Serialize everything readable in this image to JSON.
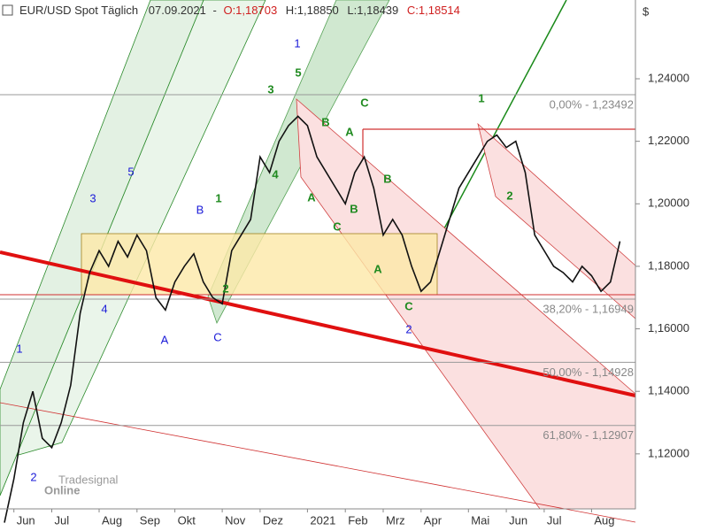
{
  "chart_data": {
    "type": "line",
    "header": {
      "symbol": "EUR/USD Spot Täglich",
      "date": "07.09.2021",
      "open": "O:1,18703",
      "high": "H:1,18850",
      "low": "L:1,18439",
      "close": "C:1,18514"
    },
    "y_label": "$",
    "categories": [
      "",
      "Jun",
      null,
      null,
      null,
      "Jul",
      null,
      null,
      null,
      null,
      "Aug",
      null,
      null,
      null,
      "Sep",
      null,
      null,
      null,
      "Okt",
      null,
      null,
      null,
      null,
      "Nov",
      null,
      null,
      null,
      "Dez",
      null,
      null,
      null,
      null,
      "2021",
      null,
      null,
      null,
      "Feb",
      null,
      null,
      null,
      "Mrz",
      null,
      null,
      null,
      "Apr",
      null,
      null,
      null,
      null,
      "Mai",
      null,
      null,
      null,
      "Jun",
      null,
      null,
      null,
      "Jul",
      null,
      null,
      null,
      null,
      "Aug",
      null,
      null,
      null
    ],
    "series": [
      {
        "name": "EUR/USD",
        "color": "#111111",
        "values": [
          1.098,
          1.112,
          1.13,
          1.14,
          1.125,
          1.122,
          1.13,
          1.142,
          1.165,
          1.178,
          1.185,
          1.18,
          1.188,
          1.183,
          1.19,
          1.185,
          1.17,
          1.166,
          1.175,
          1.18,
          1.184,
          1.175,
          1.17,
          1.168,
          1.185,
          1.19,
          1.195,
          1.215,
          1.21,
          1.22,
          1.225,
          1.228,
          1.225,
          1.215,
          1.21,
          1.205,
          1.2,
          1.21,
          1.215,
          1.205,
          1.19,
          1.195,
          1.19,
          1.18,
          1.172,
          1.175,
          1.185,
          1.195,
          1.205,
          1.21,
          1.215,
          1.22,
          1.222,
          1.218,
          1.22,
          1.21,
          1.19,
          1.185,
          1.18,
          1.178,
          1.175,
          1.18,
          1.177,
          1.172,
          1.175,
          1.188
        ]
      }
    ],
    "ylim": [
      1.1024,
      1.2652
    ],
    "yticks": [
      {
        "value": 1.12,
        "label": "1,12000"
      },
      {
        "value": 1.14,
        "label": "1,14000"
      },
      {
        "value": 1.16,
        "label": "1,16000"
      },
      {
        "value": 1.18,
        "label": "1,18000"
      },
      {
        "value": 1.2,
        "label": "1,20000"
      },
      {
        "value": 1.22,
        "label": "1,22000"
      },
      {
        "value": 1.24,
        "label": "1,24000"
      }
    ],
    "levels": [
      {
        "value": 1.23492,
        "label": "0,00% - 1,23492"
      },
      {
        "value": 1.16949,
        "label": "38,20% - 1,16949"
      },
      {
        "value": 1.14928,
        "label": "50,00% - 1,14928"
      },
      {
        "value": 1.12907,
        "label": "61,80% - 1,12907"
      }
    ],
    "wave_labels_major": {
      "color": "#1a1ad8",
      "texts": [
        "1",
        "2",
        "3",
        "4",
        "5",
        "A",
        "B",
        "C",
        "1",
        "2"
      ]
    },
    "wave_labels_minor": {
      "color": "#1f8a1f",
      "texts": [
        "3",
        "5",
        "4",
        "B",
        "A",
        "C",
        "B",
        "A",
        "C",
        "B",
        "A",
        "C",
        "1",
        "2",
        "1",
        "2"
      ]
    },
    "logo": [
      "Tradesignal",
      "Online"
    ]
  }
}
